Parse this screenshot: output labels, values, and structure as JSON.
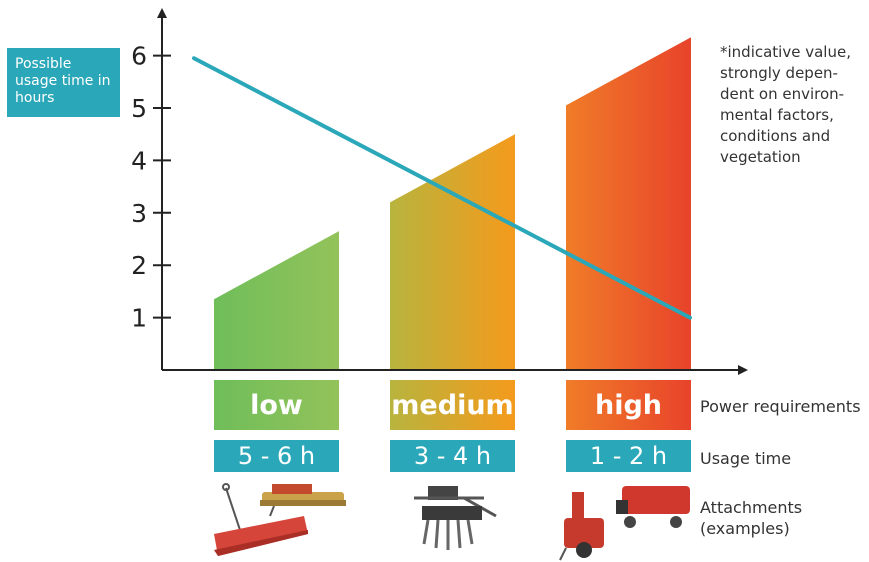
{
  "chart_data": {
    "type": "bar",
    "y_label": "Possible usage time in hours",
    "y_ticks": [
      "1",
      "2",
      "3",
      "4",
      "5",
      "6"
    ],
    "ylim": [
      0,
      6.6
    ],
    "categories": [
      "low",
      "medium",
      "high"
    ],
    "bars": [
      {
        "category": "low",
        "start": 1.35,
        "end": 2.65
      },
      {
        "category": "medium",
        "start": 3.2,
        "end": 4.5
      },
      {
        "category": "high",
        "start": 5.05,
        "end": 6.35
      }
    ],
    "line": {
      "start": 5.95,
      "end": 1.0
    },
    "usage_times": [
      "5 - 6 h",
      "3 - 4 h",
      "1 - 2 h"
    ],
    "note": "*indicative value,\nstrongly depen-\ndent on environ-\nmental factors,\nconditions and\nvegetation",
    "row_labels": {
      "power": "Power requirements",
      "usage": "Usage time",
      "attachments": "Attachments\n(examples)"
    }
  },
  "colors": {
    "teal": "#2aa7b8",
    "low_from": "#6fbe5a",
    "low_to": "#93c25a",
    "medium_from": "#b8b43e",
    "medium_to": "#f49a1c",
    "high_from": "#f07c28",
    "high_to": "#e8432b",
    "axis": "#222222"
  }
}
